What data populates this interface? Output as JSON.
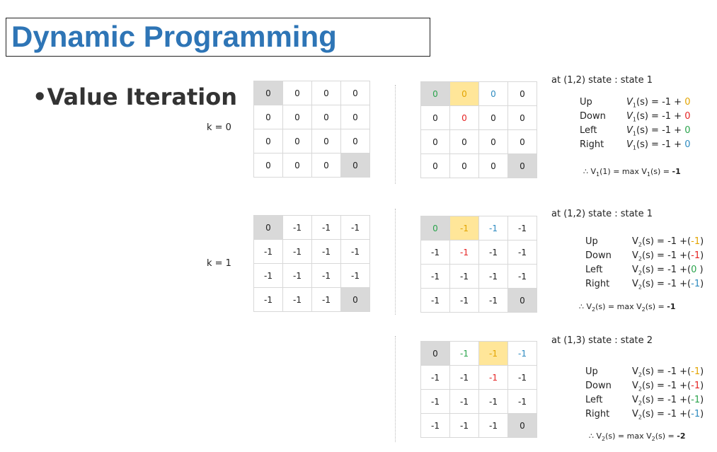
{
  "title": "Dynamic Programming",
  "subtitle": "•Value Iteration",
  "k_labels": [
    "k = 0",
    "k = 1"
  ],
  "grid_k0": [
    [
      "0",
      "0",
      "0",
      "0"
    ],
    [
      "0",
      "0",
      "0",
      "0"
    ],
    [
      "0",
      "0",
      "0",
      "0"
    ],
    [
      "0",
      "0",
      "0",
      "0"
    ]
  ],
  "grid_k1": [
    [
      "0",
      "-1",
      "-1",
      "-1"
    ],
    [
      "-1",
      "-1",
      "-1",
      "-1"
    ],
    [
      "-1",
      "-1",
      "-1",
      "-1"
    ],
    [
      "-1",
      "-1",
      "-1",
      "0"
    ]
  ],
  "grid_a": [
    [
      "0",
      "0",
      "0",
      "0"
    ],
    [
      "0",
      "0",
      "0",
      "0"
    ],
    [
      "0",
      "0",
      "0",
      "0"
    ],
    [
      "0",
      "0",
      "0",
      "0"
    ]
  ],
  "grid_b": [
    [
      "0",
      "-1",
      "-1",
      "-1"
    ],
    [
      "-1",
      "-1",
      "-1",
      "-1"
    ],
    [
      "-1",
      "-1",
      "-1",
      "-1"
    ],
    [
      "-1",
      "-1",
      "-1",
      "0"
    ]
  ],
  "grid_c": [
    [
      "0",
      "-1",
      "-1",
      "-1"
    ],
    [
      "-1",
      "-1",
      "-1",
      "-1"
    ],
    [
      "-1",
      "-1",
      "-1",
      "-1"
    ],
    [
      "-1",
      "-1",
      "-1",
      "0"
    ]
  ],
  "panel1": {
    "header": "at (1,2) state : state 1",
    "dirs": [
      "Up",
      "Down",
      "Left",
      "Right"
    ],
    "v": "V",
    "sub": "1",
    "eq": "(s) =  -1 + ",
    "vals": [
      "0",
      "0",
      "0",
      "0"
    ],
    "concl_prefix": "∴ V",
    "concl_mid": "(1) = max V",
    "concl_end": "(s) = ",
    "concl_val": "-1"
  },
  "panel2": {
    "header": "at (1,2) state : state 1",
    "dirs": [
      "Up",
      "Down",
      "Left",
      "Right"
    ],
    "v": "V",
    "sub": "2",
    "eq": "(s) = -1 +(",
    "vals": [
      "-1",
      "-1",
      "0",
      "-1"
    ],
    "close": [
      ")",
      ")",
      " )",
      ")"
    ],
    "concl_prefix": "∴ V",
    "concl_mid": "(s) = max V",
    "concl_end": "(s) = ",
    "concl_val": "-1"
  },
  "panel3": {
    "header": "at (1,3) state : state 2",
    "dirs": [
      "Up",
      "Down",
      "Left",
      "Right"
    ],
    "v": "V",
    "sub": "2",
    "eq": "(s) = -1 +(",
    "vals": [
      "-1",
      "-1",
      "-1",
      "-1"
    ],
    "close": [
      ")",
      ")",
      ")",
      ")"
    ],
    "concl_prefix": "∴ V",
    "concl_mid": "(s) = max V",
    "concl_end": "(s) = ",
    "concl_val": "-2"
  },
  "colors": {
    "title": "#2e75b6",
    "green": "#2aa44c",
    "orange": "#e3a400",
    "blue": "#2e8bc0",
    "red": "#e52424",
    "highlight": "#ffe699",
    "terminal": "#d9d9d9"
  }
}
